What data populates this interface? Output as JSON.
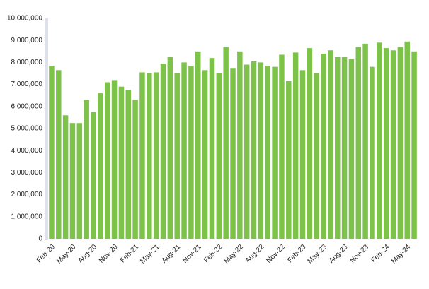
{
  "chart_data": {
    "type": "bar",
    "categories": [
      "Feb-20",
      null,
      null,
      "May-20",
      null,
      null,
      "Aug-20",
      null,
      null,
      "Nov-20",
      null,
      null,
      "Feb-21",
      null,
      null,
      "May-21",
      null,
      null,
      "Aug-21",
      null,
      null,
      "Nov-21",
      null,
      null,
      "Feb-22",
      null,
      null,
      "May-22",
      null,
      null,
      "Aug-22",
      null,
      null,
      "Nov-22",
      null,
      null,
      "Feb-23",
      null,
      null,
      "May-23",
      null,
      null,
      "Aug-23",
      null,
      null,
      "Nov-23",
      null,
      null,
      "Feb-24",
      null,
      null,
      "May-24",
      null
    ],
    "values": [
      7850000,
      7650000,
      5600000,
      5250000,
      5250000,
      6300000,
      5750000,
      6600000,
      7100000,
      7200000,
      6900000,
      6750000,
      6300000,
      7550000,
      7500000,
      7550000,
      7950000,
      8250000,
      7500000,
      8000000,
      7850000,
      8500000,
      7650000,
      8200000,
      7500000,
      8700000,
      7750000,
      8500000,
      7900000,
      8050000,
      8000000,
      7850000,
      7800000,
      8350000,
      7150000,
      8450000,
      7650000,
      8650000,
      7500000,
      8400000,
      8550000,
      8250000,
      8250000,
      8150000,
      8700000,
      8850000,
      7800000,
      8900000,
      8650000,
      8550000,
      8700000,
      8950000,
      8500000
    ],
    "color": "#7dc34a",
    "ylim": [
      0,
      10000000
    ],
    "yticks": [
      0,
      {
        "value": 1000000,
        "label": "1,000,000"
      },
      {
        "value": 2000000,
        "label": "2,000,000"
      },
      {
        "value": 3000000,
        "label": "3,000,000"
      },
      {
        "value": 4000000,
        "label": "4,000,000"
      },
      {
        "value": 5000000,
        "label": "5,000,000"
      },
      {
        "value": 6000000,
        "label": "6,000,000"
      },
      {
        "value": 7000000,
        "label": "7,000,000"
      },
      {
        "value": 8000000,
        "label": "8,000,000"
      },
      {
        "value": 9000000,
        "label": "9,000,000"
      },
      {
        "value": 10000000,
        "label": "10,000,000"
      }
    ],
    "grid": false
  }
}
